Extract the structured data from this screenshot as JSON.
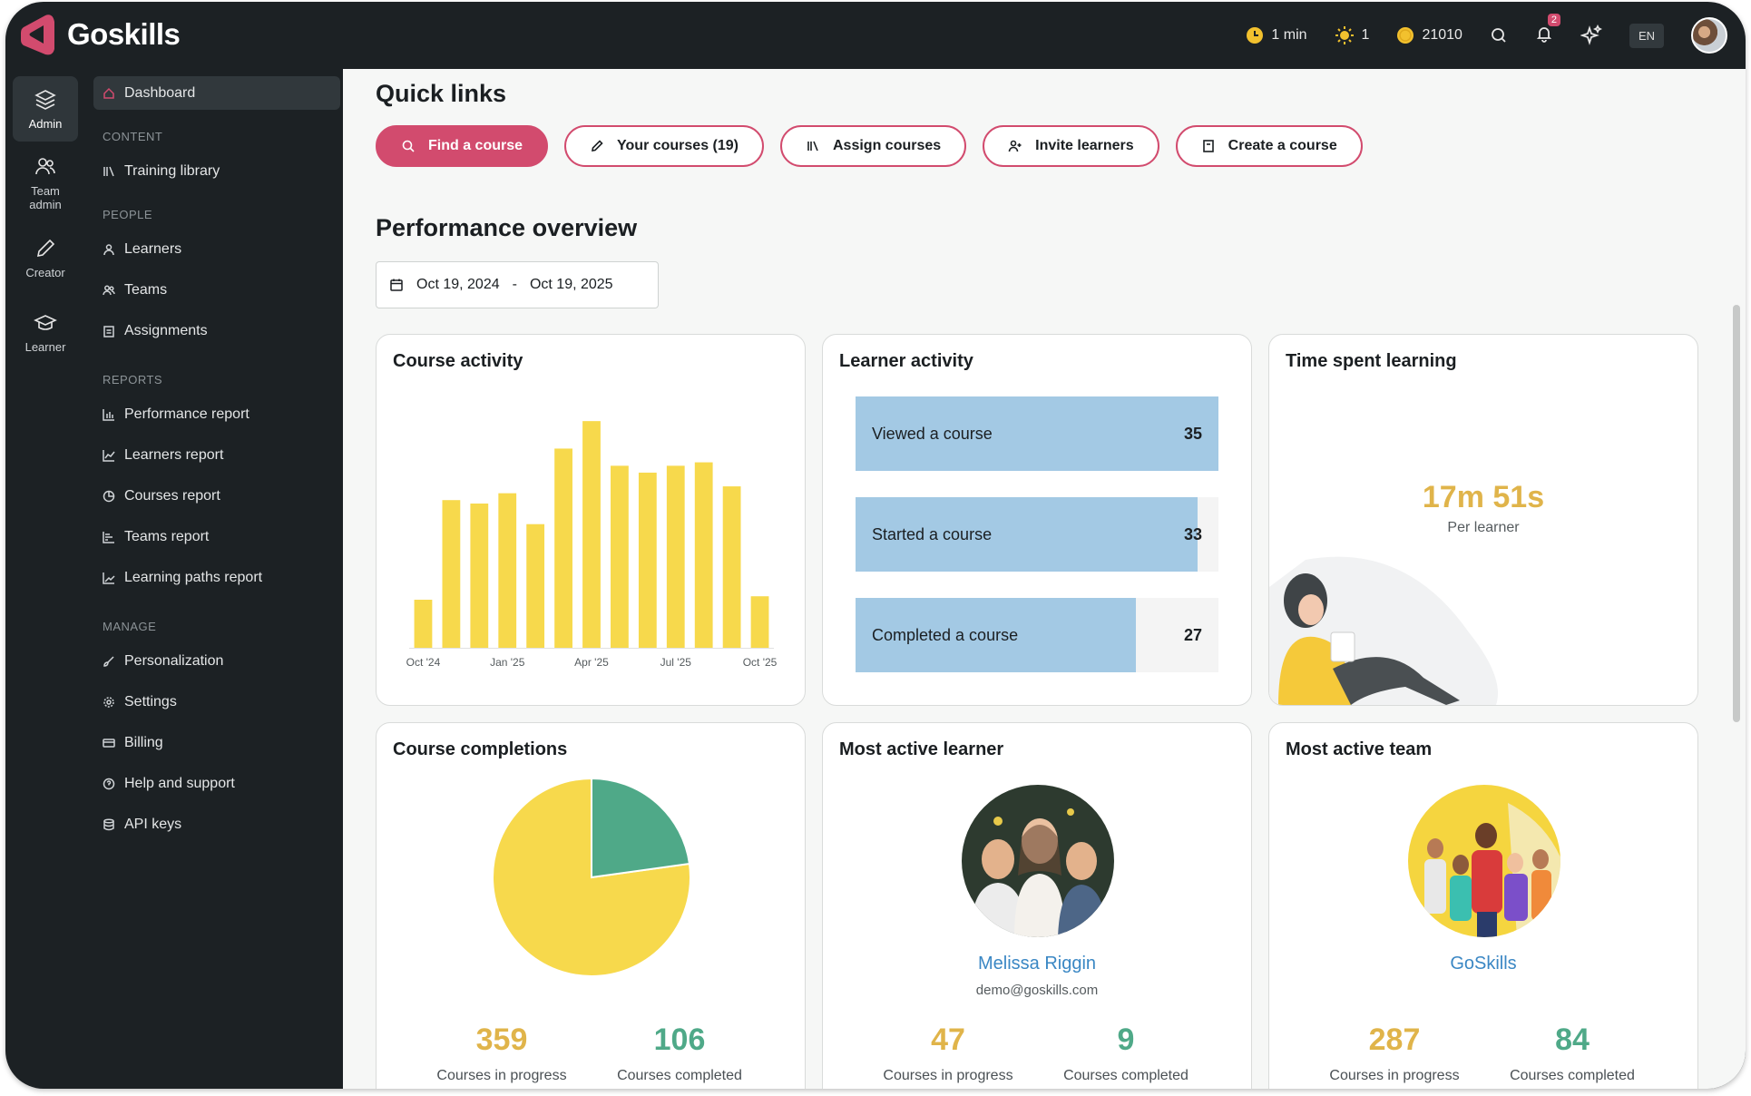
{
  "app": {
    "name": "Goskills"
  },
  "topbar": {
    "time": "1 min",
    "streak": "1",
    "coins": "21010",
    "notifications": "2",
    "language": "EN"
  },
  "rail": [
    {
      "label": "Admin",
      "icon": "layers-icon"
    },
    {
      "label": "Team admin",
      "icon": "team-icon"
    },
    {
      "label": "Creator",
      "icon": "pencil-icon"
    },
    {
      "label": "Learner",
      "icon": "graduation-cap-icon"
    }
  ],
  "sidebar": {
    "dashboard": "Dashboard",
    "content_heading": "CONTENT",
    "training_library": "Training library",
    "people_heading": "PEOPLE",
    "learners": "Learners",
    "teams": "Teams",
    "assignments": "Assignments",
    "reports_heading": "REPORTS",
    "performance_report": "Performance report",
    "learners_report": "Learners report",
    "courses_report": "Courses report",
    "teams_report": "Teams report",
    "learning_paths_report": "Learning paths report",
    "manage_heading": "MANAGE",
    "personalization": "Personalization",
    "settings": "Settings",
    "billing": "Billing",
    "help": "Help and support",
    "api_keys": "API keys"
  },
  "quick_links": {
    "title": "Quick links",
    "find": "Find a course",
    "your_courses": "Your courses (19)",
    "assign": "Assign courses",
    "invite": "Invite learners",
    "create": "Create a course"
  },
  "performance": {
    "title": "Performance overview",
    "date_from": "Oct 19, 2024",
    "date_sep": "-",
    "date_to": "Oct 19, 2025"
  },
  "course_activity": {
    "title": "Course activity"
  },
  "chart_data": [
    {
      "type": "bar",
      "title": "Course activity",
      "categories": [
        "Oct '24",
        "Nov '24",
        "Dec '24",
        "Jan '25",
        "Feb '25",
        "Mar '25",
        "Apr '25",
        "May '25",
        "Jun '25",
        "Jul '25",
        "Aug '25",
        "Sep '25",
        "Oct '25"
      ],
      "values": [
        14,
        43,
        42,
        45,
        36,
        58,
        66,
        53,
        51,
        53,
        54,
        47,
        15
      ],
      "tick_labels": [
        "Oct '24",
        "Jan '25",
        "Apr '25",
        "Jul '25",
        "Oct '25"
      ],
      "color": "#f7d94c",
      "ylim": [
        0,
        70
      ],
      "grid": false,
      "xlabel": "",
      "ylabel": ""
    },
    {
      "type": "bar",
      "title": "Learner activity",
      "orientation": "horizontal",
      "categories": [
        "Viewed a course",
        "Started a course",
        "Completed a course"
      ],
      "values": [
        35,
        33,
        27
      ],
      "max": 35,
      "color": "#a3c9e4"
    },
    {
      "type": "pie",
      "title": "Course completions",
      "categories": [
        "Courses in progress",
        "Courses completed"
      ],
      "values": [
        359,
        106
      ],
      "colors": [
        "#f7d94c",
        "#4fa988"
      ]
    }
  ],
  "learner_activity": {
    "title": "Learner activity",
    "viewed_label": "Viewed a course",
    "viewed_value": "35",
    "started_label": "Started a course",
    "started_value": "33",
    "completed_label": "Completed a course",
    "completed_value": "27"
  },
  "time_spent": {
    "title": "Time spent learning",
    "value": "17m 51s",
    "sub": "Per learner"
  },
  "course_completions": {
    "title": "Course completions",
    "in_progress": "359",
    "in_progress_label": "Courses in progress",
    "completed": "106",
    "completed_label": "Courses completed"
  },
  "most_active_learner": {
    "title": "Most active learner",
    "name": "Melissa Riggin",
    "email": "demo@goskills.com",
    "in_progress": "47",
    "in_progress_label": "Courses in progress",
    "completed": "9",
    "completed_label": "Courses completed"
  },
  "most_active_team": {
    "title": "Most active team",
    "name": "GoSkills",
    "in_progress": "287",
    "in_progress_label": "Courses in progress",
    "completed": "84",
    "completed_label": "Courses completed"
  },
  "colors": {
    "brand": "#d24b6e",
    "accent_yellow": "#e0b44a",
    "accent_green": "#4fa988",
    "sidebar_bg": "#1c2124"
  }
}
